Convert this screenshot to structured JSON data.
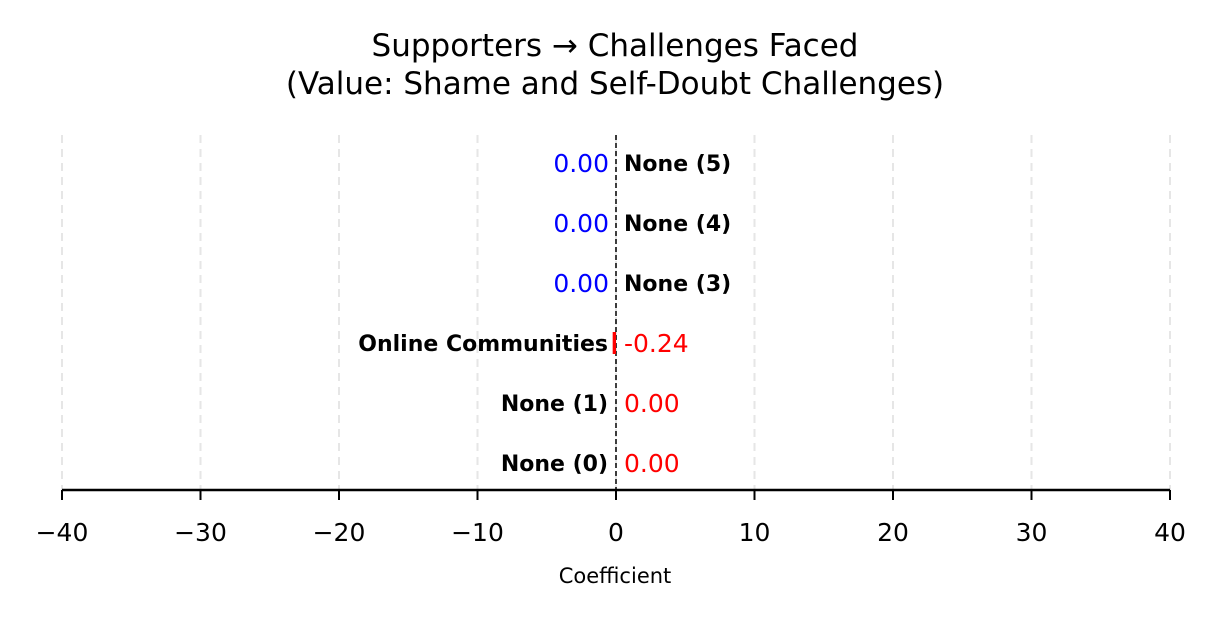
{
  "chart_data": {
    "type": "bar",
    "orientation": "horizontal",
    "title": "Supporters → Challenges Faced",
    "subtitle": "(Value: Shame and Self-Doubt Challenges)",
    "xlabel": "Coefficient",
    "ylabel": "",
    "xlim": [
      -40,
      40
    ],
    "xticks": [
      -40,
      -30,
      -20,
      -10,
      0,
      10,
      20,
      30,
      40
    ],
    "xtick_labels": [
      "−40",
      "−30",
      "−20",
      "−10",
      "0",
      "10",
      "20",
      "30",
      "40"
    ],
    "grid": "vertical dashed",
    "reference_line": 0,
    "rows": [
      {
        "label": "None (5)",
        "value": 0.0,
        "value_label": "0.00",
        "group": "positive"
      },
      {
        "label": "None (4)",
        "value": 0.0,
        "value_label": "0.00",
        "group": "positive"
      },
      {
        "label": "None (3)",
        "value": 0.0,
        "value_label": "0.00",
        "group": "positive"
      },
      {
        "label": "Online Communities",
        "value": -0.24,
        "value_label": "-0.24",
        "group": "negative"
      },
      {
        "label": "None (1)",
        "value": 0.0,
        "value_label": "0.00",
        "group": "negative"
      },
      {
        "label": "None (0)",
        "value": 0.0,
        "value_label": "0.00",
        "group": "negative"
      }
    ],
    "colors": {
      "positive": "#0000ff",
      "negative": "#ff0000",
      "grid": "#e6e6e6",
      "axis": "#000000"
    }
  }
}
